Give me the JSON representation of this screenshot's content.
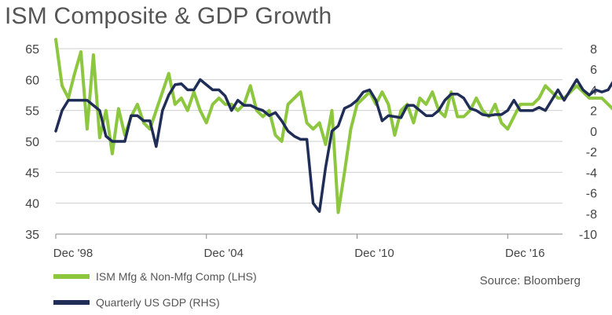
{
  "chart_data": {
    "type": "line",
    "title": "ISM Composite & GDP Growth",
    "source": "Source: Bloomberg",
    "x_start": 1998.917,
    "x_step": 0.25,
    "xlim": [
      1998.917,
      2019.1
    ],
    "x_ticks": [
      {
        "label": "Dec '98",
        "x": 1998.917
      },
      {
        "label": "Dec '04",
        "x": 2004.917
      },
      {
        "label": "Dec '10",
        "x": 2010.917
      },
      {
        "label": "Dec '16",
        "x": 2016.917
      }
    ],
    "y_left": {
      "lim": [
        35,
        65
      ],
      "ticks": [
        35,
        40,
        45,
        50,
        55,
        60,
        65
      ]
    },
    "y_right": {
      "lim": [
        -10,
        8
      ],
      "ticks": [
        -10,
        -8,
        -6,
        -4,
        -2,
        0,
        2,
        4,
        6,
        8
      ]
    },
    "grid": true,
    "series": [
      {
        "name": "ISM Mfg & Non-Mfg Comp (LHS)",
        "axis": "left",
        "color": "#8dc63f",
        "values": [
          66.5,
          59,
          57,
          61,
          64.5,
          52,
          64,
          50.6,
          55,
          48,
          55.3,
          51,
          54,
          56,
          53,
          52,
          55,
          58,
          61,
          56,
          57,
          55,
          58,
          55,
          53,
          56,
          57,
          56,
          56,
          55,
          56,
          59,
          55,
          54,
          55,
          51,
          50,
          56,
          57,
          58,
          53,
          52,
          53,
          49.5,
          55,
          38.5,
          45,
          52,
          56,
          57,
          58,
          56,
          58,
          56,
          51,
          55,
          56,
          53,
          57,
          56,
          58,
          55,
          54,
          58,
          54,
          54,
          55,
          57,
          55,
          54,
          56,
          53,
          52,
          54,
          56,
          56,
          56,
          57,
          59,
          58,
          57,
          57,
          58,
          59,
          58,
          57,
          57,
          57,
          56,
          55
        ]
      },
      {
        "name": "Quarterly US GDP (RHS)",
        "axis": "right",
        "color": "#1f2d57",
        "values": [
          0,
          2,
          3,
          3,
          3,
          3,
          2.5,
          2,
          -0.5,
          -1,
          -1,
          -1,
          1.5,
          1.5,
          1,
          1,
          -1.5,
          2,
          3.5,
          4.5,
          4.6,
          4,
          4,
          5,
          4.5,
          4,
          4,
          3.4,
          2,
          3,
          2.5,
          2.5,
          2.2,
          2,
          1.5,
          1.8,
          1,
          0,
          -0.5,
          -0.8,
          -0.8,
          -7,
          -7.8,
          -3.5,
          0,
          0.5,
          2.2,
          2.5,
          3,
          3.8,
          4,
          3,
          1,
          1.5,
          1.4,
          1.3,
          2.5,
          2.5,
          2,
          1.5,
          1.5,
          2,
          3,
          3.6,
          3.6,
          3.2,
          2.2,
          2,
          1.6,
          1.5,
          1.6,
          1.6,
          2,
          3,
          2,
          2,
          2,
          2.3,
          2,
          3,
          4,
          3,
          4,
          5,
          4,
          3.5,
          4,
          3.8,
          4,
          5,
          5.2,
          4.5,
          4
        ]
      }
    ]
  }
}
